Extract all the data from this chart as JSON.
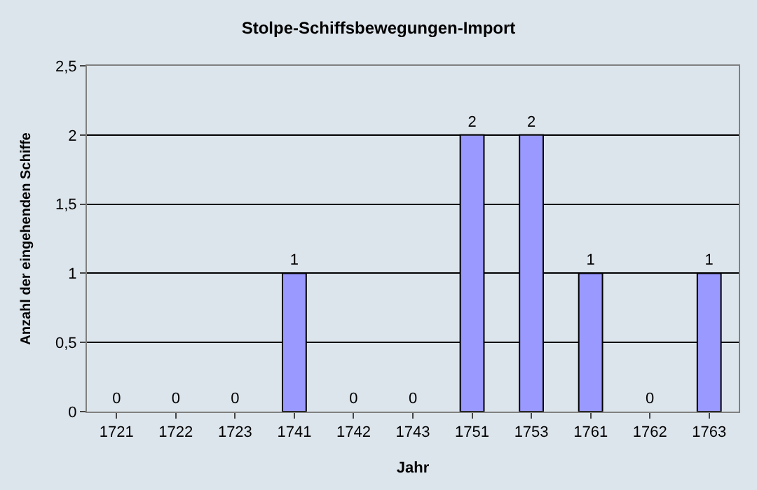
{
  "chart_data": {
    "type": "bar",
    "title": "Stolpe-Schiffsbewegungen-Import",
    "xlabel": "Jahr",
    "ylabel": "Anzahl der eingehenden Schiffe",
    "categories": [
      "1721",
      "1722",
      "1723",
      "1741",
      "1742",
      "1743",
      "1751",
      "1753",
      "1761",
      "1762",
      "1763"
    ],
    "values": [
      0,
      0,
      0,
      1,
      0,
      0,
      2,
      2,
      1,
      0,
      1
    ],
    "color": "#9999ff",
    "ylim": [
      0,
      2.5
    ],
    "yticks": [
      {
        "value": 0,
        "label": "0"
      },
      {
        "value": 0.5,
        "label": "0,5"
      },
      {
        "value": 1,
        "label": "1"
      },
      {
        "value": 1.5,
        "label": "1,5"
      },
      {
        "value": 2,
        "label": "2"
      },
      {
        "value": 2.5,
        "label": "2,5"
      }
    ],
    "grid": "y",
    "data_labels": true,
    "legend": false
  }
}
